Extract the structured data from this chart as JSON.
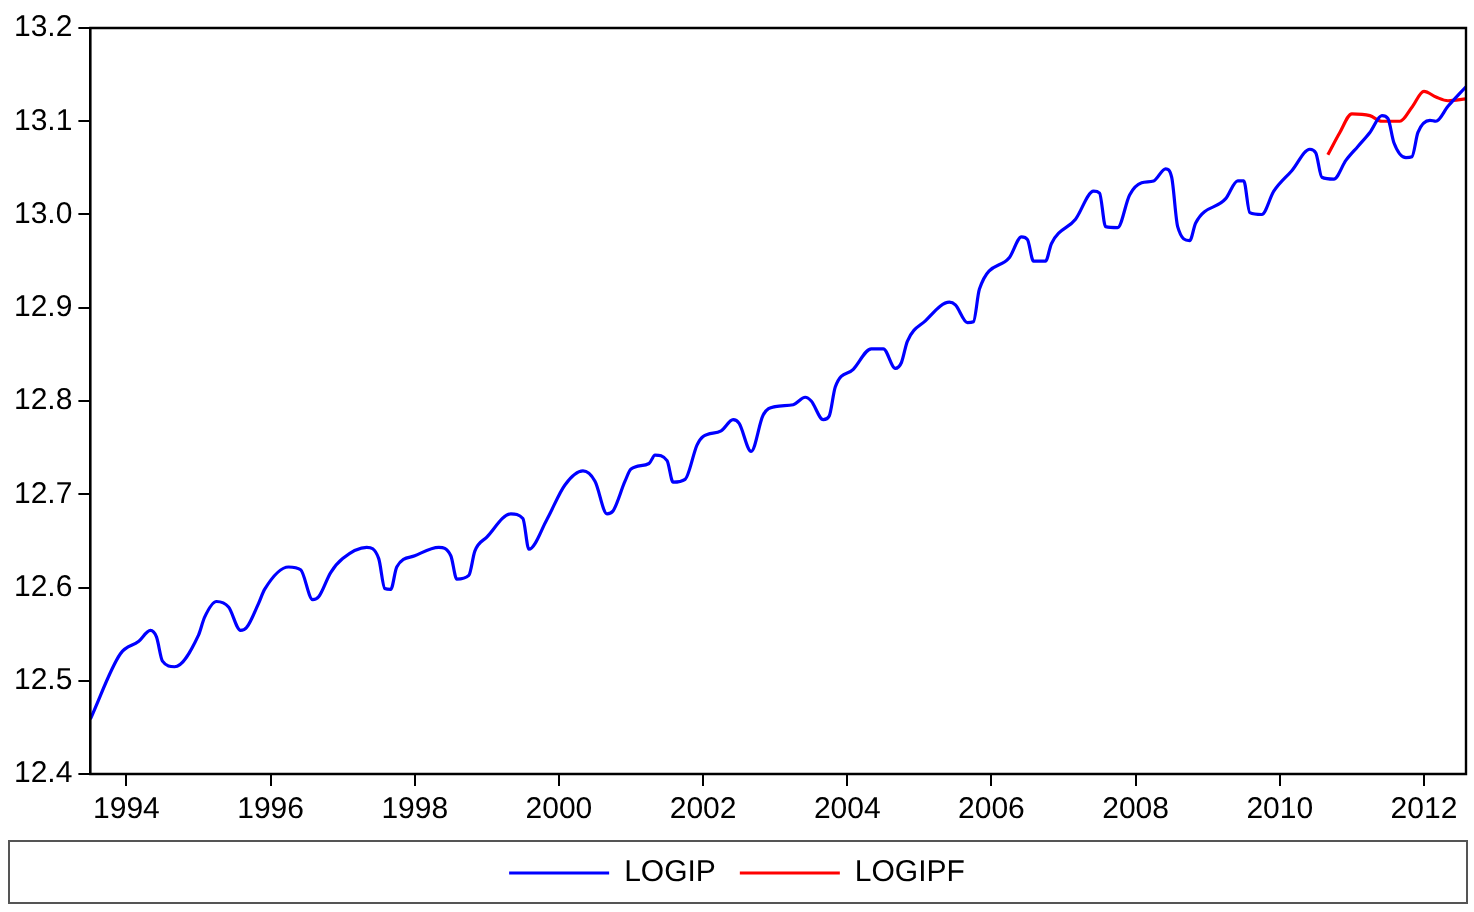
{
  "chart_data": {
    "type": "line",
    "xlim": [
      "1994-01",
      "2013-02"
    ],
    "xticks": [
      {
        "value": "1994-07",
        "label": "1994"
      },
      {
        "value": "1996-07",
        "label": "1996"
      },
      {
        "value": "1998-07",
        "label": "1998"
      },
      {
        "value": "2000-07",
        "label": "2000"
      },
      {
        "value": "2002-07",
        "label": "2002"
      },
      {
        "value": "2004-07",
        "label": "2004"
      },
      {
        "value": "2006-07",
        "label": "2006"
      },
      {
        "value": "2008-07",
        "label": "2008"
      },
      {
        "value": "2010-07",
        "label": "2010"
      },
      {
        "value": "2012-07",
        "label": "2012"
      }
    ],
    "ylim": [
      12.4,
      13.2
    ],
    "yticks": [
      12.4,
      12.5,
      12.6,
      12.7,
      12.8,
      12.9,
      {
        "value": 13,
        "label": "13.0"
      },
      13.1,
      13.2
    ],
    "grid": false,
    "legend": "bottom",
    "marker": "none",
    "line_style": "solid",
    "series": [
      {
        "name": "LOGIP",
        "color": "#0000ff",
        "x": [
          "1994-01",
          "1994-06",
          "1994-09",
          "1994-11",
          "1994-12",
          "1995-01",
          "1995-03",
          "1995-07",
          "1995-08",
          "1995-10",
          "1995-12",
          "1996-02",
          "1996-03",
          "1996-05",
          "1996-06",
          "1996-10",
          "1996-12",
          "1997-02",
          "1997-03",
          "1997-05",
          "1997-07",
          "1997-11",
          "1998-01",
          "1998-02",
          "1998-03",
          "1998-04",
          "1998-07",
          "1998-11",
          "1999-01",
          "1999-02",
          "1999-04",
          "1999-05",
          "1999-07",
          "1999-11",
          "2000-01",
          "2000-02",
          "2000-05",
          "2000-08",
          "2000-11",
          "2001-01",
          "2001-03",
          "2001-04",
          "2001-06",
          "2001-07",
          "2001-10",
          "2001-11",
          "2002-01",
          "2002-02",
          "2002-04",
          "2002-06",
          "2002-07",
          "2002-10",
          "2002-12",
          "2003-01",
          "2003-03",
          "2003-05",
          "2003-07",
          "2003-10",
          "2003-12",
          "2004-01",
          "2004-03",
          "2004-04",
          "2004-05",
          "2004-08",
          "2004-11",
          "2005-01",
          "2005-03",
          "2005-04",
          "2005-05",
          "2005-08",
          "2005-12",
          "2006-01",
          "2006-03",
          "2006-04",
          "2006-05",
          "2006-10",
          "2006-12",
          "2007-01",
          "2007-02",
          "2007-04",
          "2007-05",
          "2007-09",
          "2007-12",
          "2008-01",
          "2008-02",
          "2008-04",
          "2008-06",
          "2008-08",
          "2008-10",
          "2008-12",
          "2009-01",
          "2009-02",
          "2009-04",
          "2009-05",
          "2009-10",
          "2009-12",
          "2010-01",
          "2010-02",
          "2010-04",
          "2010-06",
          "2010-09",
          "2010-12",
          "2011-01",
          "2011-02",
          "2011-04",
          "2011-06",
          "2011-08",
          "2011-10",
          "2011-12",
          "2012-01",
          "2012-02",
          "2012-04",
          "2012-05",
          "2012-06",
          "2012-08",
          "2012-09",
          "2012-11",
          "2013-02"
        ],
        "values": [
          12.459,
          12.529,
          12.542,
          12.554,
          12.547,
          12.521,
          12.515,
          12.549,
          12.568,
          12.585,
          12.579,
          12.554,
          12.557,
          12.583,
          12.598,
          12.622,
          12.619,
          12.587,
          12.59,
          12.616,
          12.631,
          12.643,
          12.631,
          12.599,
          12.598,
          12.622,
          12.634,
          12.643,
          12.634,
          12.609,
          12.613,
          12.639,
          12.654,
          12.679,
          12.674,
          12.641,
          12.673,
          12.71,
          12.725,
          12.714,
          12.679,
          12.682,
          12.714,
          12.727,
          12.733,
          12.742,
          12.736,
          12.713,
          12.716,
          12.753,
          12.762,
          12.768,
          12.78,
          12.776,
          12.746,
          12.785,
          12.794,
          12.796,
          12.804,
          12.8,
          12.78,
          12.784,
          12.815,
          12.834,
          12.856,
          12.856,
          12.835,
          12.841,
          12.864,
          12.886,
          12.906,
          12.903,
          12.884,
          12.885,
          12.92,
          12.954,
          12.976,
          12.973,
          12.95,
          12.95,
          12.969,
          12.995,
          13.025,
          13.023,
          12.987,
          12.986,
          13.021,
          13.034,
          13.036,
          13.049,
          13.04,
          12.987,
          12.972,
          12.991,
          13.017,
          13.036,
          13.036,
          13.002,
          13.0,
          13.025,
          13.047,
          13.07,
          13.066,
          13.04,
          13.038,
          13.058,
          13.073,
          13.088,
          13.106,
          13.103,
          13.077,
          13.061,
          13.062,
          13.088,
          13.101,
          13.1,
          13.116,
          13.137
        ]
      },
      {
        "name": "LOGIPF",
        "color": "#ff0000",
        "x": [
          "2011-03",
          "2011-05",
          "2011-07",
          "2011-10",
          "2011-12",
          "2012-03",
          "2012-05",
          "2012-07",
          "2012-09",
          "2012-11",
          "2013-02"
        ],
        "values": [
          13.064,
          13.088,
          13.108,
          13.106,
          13.1,
          13.1,
          13.115,
          13.132,
          13.126,
          13.122,
          13.124
        ]
      }
    ]
  }
}
